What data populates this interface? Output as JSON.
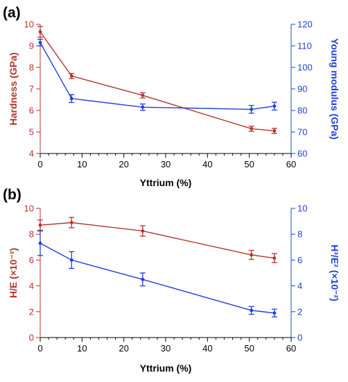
{
  "chart_data": [
    {
      "type": "line",
      "panel_label": "(a)",
      "xlabel": "Yttrium (%)",
      "xlim": [
        0,
        60
      ],
      "x_ticks": [
        "0",
        "10",
        "20",
        "30",
        "40",
        "50",
        "60"
      ],
      "ylabel_left": "Hardness (GPa)",
      "ylim_left": [
        4,
        10
      ],
      "y_ticks_left": [
        "4",
        "5",
        "6",
        "7",
        "8",
        "9",
        "10"
      ],
      "ylabel_right": "Young modulus (GPa)",
      "ylim_right": [
        60,
        120
      ],
      "y_ticks_right": [
        "60",
        "70",
        "80",
        "90",
        "100",
        "110",
        "120"
      ],
      "grid": false,
      "left_color": "#b5332a",
      "right_color": "#1f3fd8",
      "series": [
        {
          "axis": "left",
          "color": "#b5332a",
          "x": [
            0,
            7.5,
            24.5,
            50.5,
            56
          ],
          "y": [
            9.65,
            7.6,
            6.7,
            5.15,
            5.05
          ],
          "err": [
            0.25,
            0.12,
            0.12,
            0.12,
            0.12
          ]
        },
        {
          "axis": "right",
          "color": "#1f3fd8",
          "x": [
            0,
            7.5,
            24.5,
            50.5,
            56
          ],
          "y": [
            111.5,
            85.5,
            81.5,
            80.5,
            82
          ],
          "err": [
            1.5,
            1.8,
            1.5,
            1.8,
            1.8
          ]
        }
      ]
    },
    {
      "type": "line",
      "panel_label": "(b)",
      "xlabel": "Yttrium (%)",
      "xlim": [
        0,
        60
      ],
      "x_ticks": [
        "0",
        "10",
        "20",
        "30",
        "40",
        "50",
        "60"
      ],
      "ylabel_left": "H/E (×10⁻²)",
      "ylim_left": [
        0,
        10
      ],
      "y_ticks_left": [
        "0",
        "2",
        "4",
        "6",
        "8",
        "10"
      ],
      "ylabel_right": "H³/E² (×10⁻²)",
      "ylim_right": [
        0,
        10
      ],
      "y_ticks_right": [
        "0",
        "2",
        "4",
        "6",
        "8",
        "10"
      ],
      "grid": false,
      "left_color": "#b5332a",
      "right_color": "#1f3fd8",
      "series": [
        {
          "axis": "left",
          "color": "#b5332a",
          "x": [
            0,
            7.5,
            24.5,
            50.5,
            56
          ],
          "y": [
            8.7,
            8.9,
            8.25,
            6.4,
            6.15
          ],
          "err": [
            0.4,
            0.4,
            0.4,
            0.35,
            0.35
          ]
        },
        {
          "axis": "right",
          "color": "#1f3fd8",
          "x": [
            0,
            7.5,
            24.5,
            50.5,
            56
          ],
          "y": [
            7.3,
            6.0,
            4.5,
            2.1,
            1.9
          ],
          "err": [
            0.95,
            0.65,
            0.5,
            0.3,
            0.3
          ]
        }
      ]
    }
  ]
}
